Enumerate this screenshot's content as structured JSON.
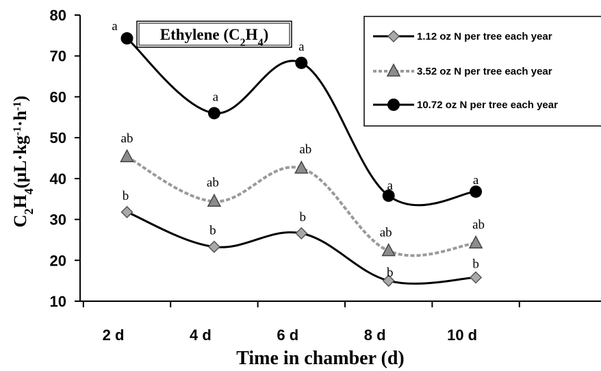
{
  "chart_data": {
    "type": "line",
    "title": "Ethylene (C2H4)",
    "xlabel": "Time in chamber (d)",
    "ylabel": "C2H4(µL·kg-1·h-1)",
    "categories": [
      "2 d",
      "4 d",
      "6 d",
      "8 d",
      "10 d"
    ],
    "x": [
      2.05,
      4.05,
      6.05,
      8.05,
      10.05
    ],
    "ylim": [
      10,
      80
    ],
    "yticks": [
      10,
      20,
      30,
      40,
      50,
      60,
      70,
      80
    ],
    "grid": false,
    "legend_position": "top-right",
    "series": [
      {
        "name": "1.12 oz N per tree each year",
        "marker": "diamond",
        "line_style": "solid",
        "values": [
          31.8,
          23.3,
          26.6,
          15.0,
          15.8
        ],
        "labels": [
          "b",
          "b",
          "b",
          "b",
          "b"
        ]
      },
      {
        "name": "3.52 oz N per tree each year",
        "marker": "triangle",
        "line_style": "dashed",
        "values": [
          45.3,
          34.4,
          42.5,
          22.3,
          24.2
        ],
        "labels": [
          "ab",
          "ab",
          "ab",
          "ab",
          "ab"
        ]
      },
      {
        "name": "10.72 oz N per tree each year",
        "marker": "circle",
        "line_style": "solid",
        "values": [
          74.3,
          56.0,
          68.3,
          35.8,
          36.8
        ],
        "labels": [
          "a",
          "a",
          "a",
          "a",
          "a"
        ]
      }
    ]
  },
  "colors": {
    "diamond_fill": "#a9a9a9",
    "triangle_fill": "#8c8c8c",
    "dashed_line": "#9a9a9a",
    "line": "#000000"
  }
}
